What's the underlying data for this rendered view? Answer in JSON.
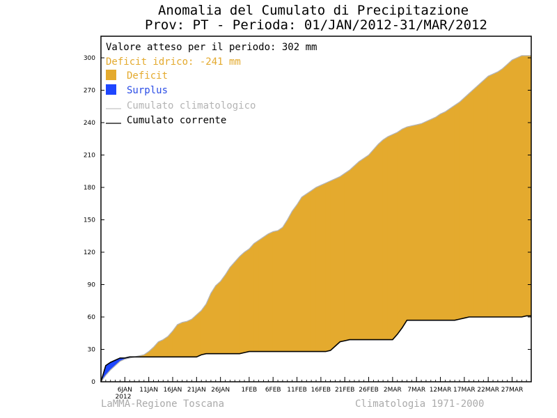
{
  "chart_data": {
    "type": "area",
    "title": "Anomalia del Cumulato di Precipitazione",
    "subtitle": "Prov: PT - Perioda: 01/JAN/2012-31/MAR/2012",
    "xlabel": "",
    "ylabel": "",
    "ylim": [
      0,
      320
    ],
    "xlim": [
      1,
      91
    ],
    "yticks": [
      0,
      30,
      60,
      90,
      120,
      150,
      180,
      210,
      240,
      270,
      300
    ],
    "xticks": [
      {
        "day": 6,
        "label": "6JAN"
      },
      {
        "day": 11,
        "label": "11JAN"
      },
      {
        "day": 16,
        "label": "16JAN"
      },
      {
        "day": 21,
        "label": "21JAN"
      },
      {
        "day": 26,
        "label": "26JAN"
      },
      {
        "day": 32,
        "label": "1FEB"
      },
      {
        "day": 37,
        "label": "6FEB"
      },
      {
        "day": 42,
        "label": "11FEB"
      },
      {
        "day": 47,
        "label": "16FEB"
      },
      {
        "day": 52,
        "label": "21FEB"
      },
      {
        "day": 57,
        "label": "26FEB"
      },
      {
        "day": 62,
        "label": "2MAR"
      },
      {
        "day": 67,
        "label": "7MAR"
      },
      {
        "day": 72,
        "label": "12MAR"
      },
      {
        "day": 77,
        "label": "17MAR"
      },
      {
        "day": 82,
        "label": "22MAR"
      },
      {
        "day": 87,
        "label": "27MAR"
      }
    ],
    "year_label": "2012",
    "grid": false,
    "legend_position": "top-left",
    "series": [
      {
        "name": "Cumulato climatologico",
        "color": "#b4b4b4",
        "x": [
          1,
          2,
          3,
          4,
          5,
          6,
          7,
          8,
          9,
          10,
          11,
          12,
          13,
          14,
          15,
          16,
          17,
          18,
          19,
          20,
          21,
          22,
          23,
          24,
          25,
          26,
          27,
          28,
          29,
          30,
          31,
          32,
          33,
          34,
          35,
          36,
          37,
          38,
          39,
          40,
          41,
          42,
          43,
          44,
          45,
          46,
          47,
          48,
          49,
          50,
          51,
          52,
          53,
          54,
          55,
          56,
          57,
          58,
          59,
          60,
          61,
          62,
          63,
          64,
          65,
          66,
          67,
          68,
          69,
          70,
          71,
          72,
          73,
          74,
          75,
          76,
          77,
          78,
          79,
          80,
          81,
          82,
          83,
          84,
          85,
          86,
          87,
          88,
          89,
          90,
          91
        ],
        "values": [
          0,
          6,
          11,
          15,
          19,
          21,
          22,
          23,
          24,
          25,
          28,
          32,
          37,
          39,
          42,
          47,
          53,
          55,
          56,
          58,
          62,
          66,
          72,
          82,
          89,
          93,
          99,
          106,
          111,
          116,
          120,
          123,
          128,
          131,
          134,
          137,
          139,
          140,
          143,
          150,
          158,
          164,
          171,
          174,
          177,
          180,
          182,
          184,
          186,
          188,
          190,
          193,
          196,
          200,
          204,
          207,
          210,
          215,
          220,
          224,
          227,
          229,
          231,
          234,
          236,
          237,
          238,
          239,
          241,
          243,
          245,
          248,
          250,
          253,
          256,
          259,
          263,
          267,
          271,
          275,
          279,
          283,
          285,
          287,
          290,
          294,
          298,
          300,
          302,
          302,
          302
        ]
      },
      {
        "name": "Cumulato corrente",
        "color": "#000000",
        "x": [
          1,
          2,
          3,
          4,
          5,
          6,
          7,
          8,
          9,
          10,
          11,
          12,
          13,
          14,
          15,
          16,
          17,
          18,
          19,
          20,
          21,
          22,
          23,
          24,
          25,
          26,
          27,
          28,
          29,
          30,
          31,
          32,
          33,
          34,
          35,
          36,
          37,
          38,
          39,
          40,
          41,
          42,
          43,
          44,
          45,
          46,
          47,
          48,
          49,
          50,
          51,
          52,
          53,
          54,
          55,
          56,
          57,
          58,
          59,
          60,
          61,
          62,
          63,
          64,
          65,
          66,
          67,
          68,
          69,
          70,
          71,
          72,
          73,
          74,
          75,
          76,
          77,
          78,
          79,
          80,
          81,
          82,
          83,
          84,
          85,
          86,
          87,
          88,
          89,
          90,
          91
        ],
        "values": [
          0,
          15,
          18,
          20,
          22,
          22,
          23,
          23,
          23,
          23,
          23,
          23,
          23,
          23,
          23,
          23,
          23,
          23,
          23,
          23,
          23,
          25,
          26,
          26,
          26,
          26,
          26,
          26,
          26,
          26,
          27,
          28,
          28,
          28,
          28,
          28,
          28,
          28,
          28,
          28,
          28,
          28,
          28,
          28,
          28,
          28,
          28,
          28,
          29,
          33,
          37,
          38,
          39,
          39,
          39,
          39,
          39,
          39,
          39,
          39,
          39,
          39,
          44,
          50,
          57,
          57,
          57,
          57,
          57,
          57,
          57,
          57,
          57,
          57,
          57,
          58,
          59,
          60,
          60,
          60,
          60,
          60,
          60,
          60,
          60,
          60,
          60,
          60,
          60,
          61,
          61
        ]
      }
    ],
    "fills": [
      {
        "name": "Deficit",
        "color": "#e4aa2e"
      },
      {
        "name": "Surplus",
        "color": "#1e46ff"
      }
    ]
  },
  "legend": {
    "expected_text": "Valore atteso per il periodo: 302 mm",
    "deficit_text": "Deficit idrico: -241 mm",
    "deficit_color": "#e4aa2e",
    "surplus_color": "#2b4de6"
  },
  "footer": {
    "left": "LaMMA-Regione Toscana",
    "right": "Climatologia 1971-2000"
  }
}
